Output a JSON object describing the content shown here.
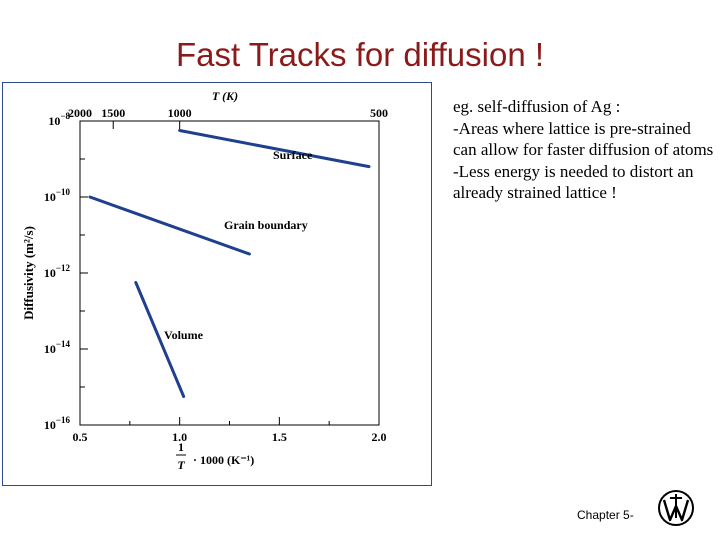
{
  "slide": {
    "title": "Fast Tracks for diffusion !",
    "notes": [
      "eg. self-diffusion of Ag :",
      "-Areas where lattice is pre-strained can allow for faster diffusion of atoms",
      "-Less energy is needed to distort an already strained lattice !"
    ],
    "footer": "Chapter 5-",
    "logo_icon": "wiley-logo-icon"
  },
  "chart_data": {
    "type": "line",
    "xlabel_fraction_num": "1",
    "xlabel_fraction_den": "T",
    "xlabel_suffix": "· 1000 (K⁻¹)",
    "ylabel": "Diffusivity (m²/s)",
    "top_axis_label": "T (K)",
    "xlim": [
      0.5,
      2.0
    ],
    "ylim_log10": [
      -16,
      -8
    ],
    "y_log_scale": true,
    "x_ticks": [
      {
        "value": 0.5,
        "label": "0.5"
      },
      {
        "value": 1.0,
        "label": "1.0"
      },
      {
        "value": 1.5,
        "label": "1.5"
      },
      {
        "value": 2.0,
        "label": "2.0"
      }
    ],
    "y_ticks": [
      {
        "exp": -8,
        "base": "10",
        "sup": "−8"
      },
      {
        "exp": -10,
        "base": "10",
        "sup": "−10"
      },
      {
        "exp": -12,
        "base": "10",
        "sup": "−12"
      },
      {
        "exp": -14,
        "base": "10",
        "sup": "−14"
      },
      {
        "exp": -16,
        "base": "10",
        "sup": "−16"
      }
    ],
    "top_ticks": [
      {
        "value": 2000,
        "label": "2000"
      },
      {
        "value": 1500,
        "label": "1500"
      },
      {
        "value": 1000,
        "label": "1000"
      },
      {
        "value": 500,
        "label": "500"
      }
    ],
    "series": [
      {
        "name": "Surface",
        "x": [
          1.0,
          1.95
        ],
        "y_log10": [
          -8.25,
          -9.2
        ]
      },
      {
        "name": "Grain boundary",
        "x": [
          0.55,
          1.35
        ],
        "y_log10": [
          -10.0,
          -11.5
        ]
      },
      {
        "name": "Volume",
        "x": [
          0.78,
          1.02
        ],
        "y_log10": [
          -12.25,
          -15.25
        ]
      }
    ],
    "series_color": "#1f3f8f"
  }
}
